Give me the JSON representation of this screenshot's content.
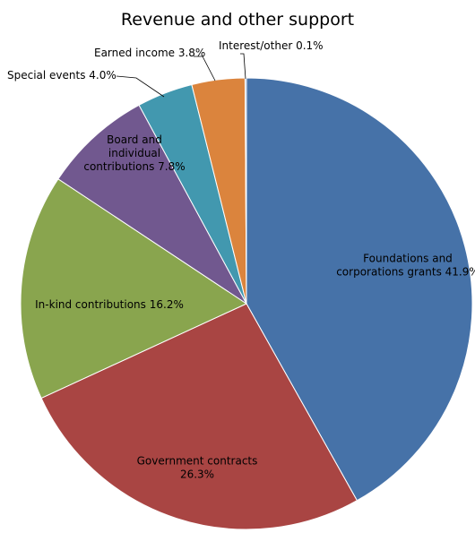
{
  "chart_data": {
    "type": "pie",
    "title": "Revenue and other support",
    "start_angle_deg": 0,
    "direction": "clockwise",
    "slices": [
      {
        "label": "Foundations and corporations grants 41.9%",
        "lines": [
          "Foundations and",
          "corporations grants 41.9%"
        ],
        "value": 41.9,
        "color": "#4672A8"
      },
      {
        "label": "Government contracts 26.3%",
        "lines": [
          "Government contracts",
          "26.3%"
        ],
        "value": 26.3,
        "color": "#A94543"
      },
      {
        "label": "In-kind contributions 16.2%",
        "lines": [
          "In-kind contributions 16.2%"
        ],
        "value": 16.2,
        "color": "#89A54E"
      },
      {
        "label": "Board and individual contributions 7.8%",
        "lines": [
          "Board and",
          "individual",
          "contributions 7.8%"
        ],
        "value": 7.8,
        "color": "#71588F"
      },
      {
        "label": "Special events 4.0%",
        "lines": [
          "Special events 4.0%"
        ],
        "value": 4.0,
        "color": "#4298AF"
      },
      {
        "label": "Earned income 3.8%",
        "lines": [
          "Earned income 3.8%"
        ],
        "value": 3.8,
        "color": "#DB843D"
      },
      {
        "label": "Interest/other 0.1%",
        "lines": [
          "Interest/other 0.1%"
        ],
        "value": 0.1,
        "color": "#93A9CF"
      }
    ]
  }
}
